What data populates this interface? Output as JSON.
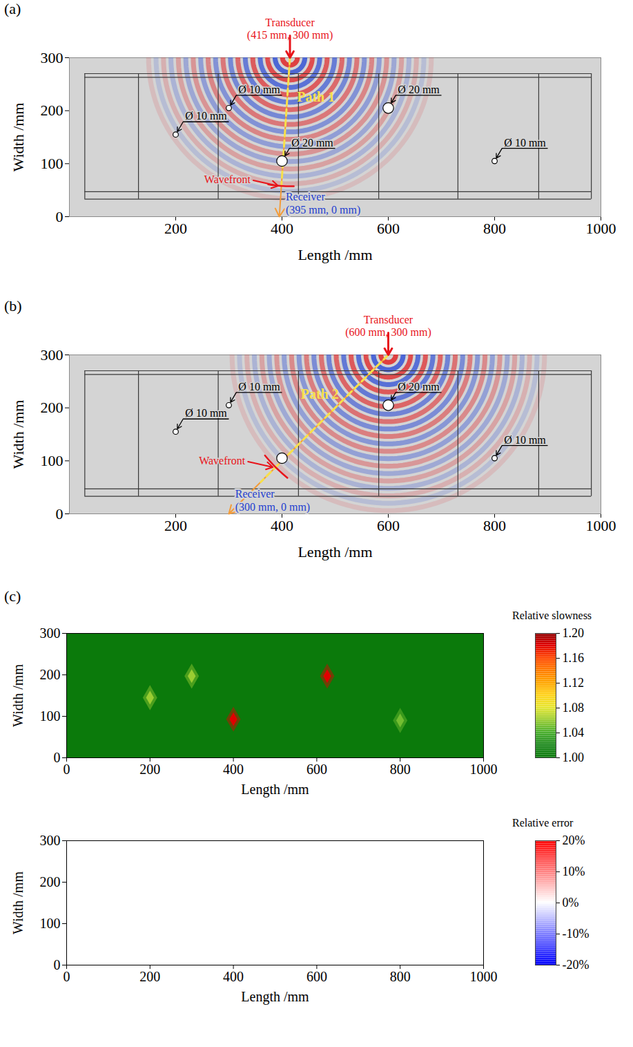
{
  "chart_data": [
    {
      "type": "scatter",
      "panel_label": "(a)",
      "x_label": "Length /mm",
      "y_label": "Width /mm",
      "xlim": [
        0,
        1000
      ],
      "ylim": [
        0,
        300
      ],
      "xticks": [
        200,
        400,
        600,
        800,
        1000
      ],
      "yticks": [
        0,
        100,
        200,
        300
      ],
      "stirrups": [
        29,
        130,
        280,
        431,
        582,
        731,
        883,
        982
      ],
      "longitudinal_bars": [
        33,
        47,
        263,
        270
      ],
      "holes": [
        {
          "x": 200,
          "y": 155,
          "diameter": 10,
          "label": "Ø 10 mm"
        },
        {
          "x": 300,
          "y": 205,
          "diameter": 10,
          "label": "Ø 10 mm"
        },
        {
          "x": 400,
          "y": 105,
          "diameter": 20,
          "label": "Ø 20 mm"
        },
        {
          "x": 600,
          "y": 205,
          "diameter": 20,
          "label": "Ø 20 mm"
        },
        {
          "x": 800,
          "y": 105,
          "diameter": 10,
          "label": "Ø 10 mm"
        }
      ],
      "transducer": {
        "label": "Transducer",
        "coords_label": "(415 mm, 300 mm)",
        "x": 415,
        "y": 300
      },
      "receiver": {
        "label": "Receiver",
        "coords_label": "(395 mm, 0 mm)",
        "x": 395,
        "y": 0
      },
      "path_label": "Path 1",
      "wavefront": {
        "label": "Wavefront",
        "x": 398,
        "y": 58
      },
      "wavefield_radius": 270
    },
    {
      "type": "scatter",
      "panel_label": "(b)",
      "x_label": "Length /mm",
      "y_label": "Width /mm",
      "xlim": [
        0,
        1000
      ],
      "ylim": [
        0,
        300
      ],
      "xticks": [
        200,
        400,
        600,
        800,
        1000
      ],
      "yticks": [
        0,
        100,
        200,
        300
      ],
      "stirrups": [
        29,
        130,
        280,
        431,
        582,
        731,
        883,
        982
      ],
      "longitudinal_bars": [
        33,
        47,
        263,
        270
      ],
      "holes": [
        {
          "x": 200,
          "y": 155,
          "diameter": 10,
          "label": "Ø 10 mm"
        },
        {
          "x": 300,
          "y": 205,
          "diameter": 10,
          "label": "Ø 10 mm"
        },
        {
          "x": 400,
          "y": 105,
          "diameter": 20,
          "label": null
        },
        {
          "x": 600,
          "y": 205,
          "diameter": 20,
          "label": "Ø 20 mm"
        },
        {
          "x": 800,
          "y": 105,
          "diameter": 10,
          "label": "Ø 10 mm"
        }
      ],
      "transducer": {
        "label": "Transducer",
        "coords_label": "(600 mm, 300 mm)",
        "x": 600,
        "y": 300
      },
      "receiver": {
        "label": "Receiver",
        "coords_label": "(300 mm, 0 mm)",
        "x": 300,
        "y": 0
      },
      "path_label": "Path 2",
      "wavefront": {
        "label": "Wavefront",
        "x": 388,
        "y": 88
      },
      "wavefield_radius": 300
    },
    {
      "type": "heatmap",
      "panel_label": "(c)",
      "x_label": "Length /mm",
      "y_label": "Width /mm",
      "xlim": [
        0,
        1000
      ],
      "ylim": [
        0,
        300
      ],
      "xticks": [
        0,
        200,
        400,
        600,
        800,
        1000
      ],
      "yticks": [
        0,
        100,
        200,
        300
      ],
      "colorbar": {
        "title": "Relative slowness",
        "lim": [
          1,
          1.2
        ],
        "ticks": [
          {
            "value": 1,
            "label": "1.00"
          },
          {
            "value": 1.04,
            "label": "1.04"
          },
          {
            "value": 1.08,
            "label": "1.08"
          },
          {
            "value": 1.12,
            "label": "1.12"
          },
          {
            "value": 1.16,
            "label": "1.16"
          },
          {
            "value": 1.2,
            "label": "1.20"
          }
        ]
      },
      "background": 1,
      "cells": [
        {
          "x": 200,
          "y": 145,
          "value": 1.06
        },
        {
          "x": 300,
          "y": 197,
          "value": 1.06
        },
        {
          "x": 400,
          "y": 93,
          "value": 1.18
        },
        {
          "x": 625,
          "y": 197,
          "value": 1.18
        },
        {
          "x": 800,
          "y": 90,
          "value": 1.05
        }
      ]
    },
    {
      "type": "heatmap",
      "x_label": "Length /mm",
      "y_label": "Width /mm",
      "xlim": [
        0,
        1000
      ],
      "ylim": [
        0,
        300
      ],
      "xticks": [
        0,
        200,
        400,
        600,
        800,
        1000
      ],
      "yticks": [
        0,
        100,
        200,
        300
      ],
      "colorbar": {
        "title": "Relative error",
        "lim": [
          -20,
          20
        ],
        "ticks": [
          {
            "value": -20,
            "label": "-20%"
          },
          {
            "value": -10,
            "label": "-10%"
          },
          {
            "value": 0,
            "label": "0%"
          },
          {
            "value": 10,
            "label": "10%"
          },
          {
            "value": 20,
            "label": "20%"
          }
        ]
      },
      "background": 0,
      "cells": []
    }
  ]
}
